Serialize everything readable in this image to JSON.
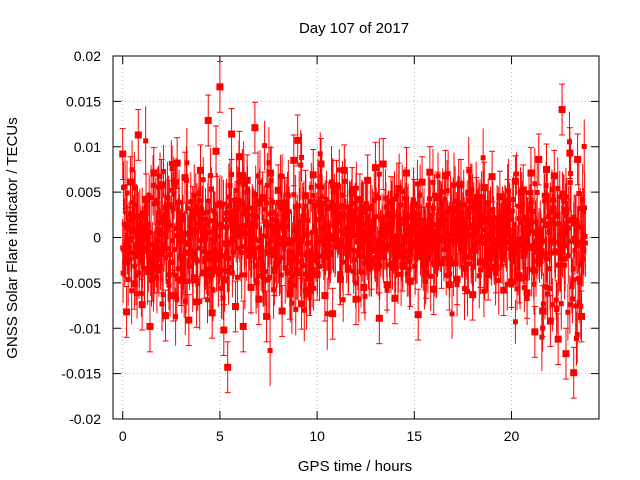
{
  "chart_data": {
    "type": "scatter",
    "title": "Day 107 of 2017",
    "xlabel": "GPS time / hours",
    "ylabel": "GNSS Solar Flare indicator / TECUs",
    "xlim": [
      -0.5,
      24.5
    ],
    "ylim": [
      -0.02,
      0.02
    ],
    "xticks": [
      0,
      5,
      10,
      15,
      20
    ],
    "yticks": [
      -0.02,
      -0.015,
      -0.01,
      -0.005,
      0,
      0.005,
      0.01,
      0.015,
      0.02
    ],
    "x_tick_labels": [
      "0",
      "5",
      "10",
      "15",
      "20"
    ],
    "y_tick_labels": [
      "-0.02",
      "-0.015",
      "-0.01",
      "-0.005",
      "0",
      "0.005",
      "0.01",
      "0.015",
      "0.02"
    ],
    "grid": true,
    "legend": "none",
    "error_bars": true,
    "marker": "square",
    "series_color": "#ff0000",
    "series": [
      {
        "x": [
          0.0,
          0.2,
          0.4,
          0.6,
          0.8,
          1.0,
          1.2,
          1.4,
          1.6,
          1.8,
          2.0,
          2.2,
          2.4,
          2.6,
          2.8,
          3.0,
          3.2,
          3.4,
          3.6,
          3.8,
          4.0,
          4.2,
          4.4,
          4.6,
          4.8,
          5.0,
          5.2,
          5.4,
          5.6,
          5.8,
          6.0,
          6.2,
          6.4,
          6.6,
          6.8,
          7.0,
          7.2,
          7.4,
          7.6,
          7.8,
          8.0,
          8.2,
          8.4,
          8.6,
          8.8,
          9.0,
          9.2,
          9.4,
          9.6,
          9.8,
          10.0,
          10.2,
          10.4,
          10.6,
          10.8,
          11.0,
          11.2,
          11.4,
          11.6,
          11.8,
          12.0,
          12.2,
          12.4,
          12.6,
          12.8,
          13.0,
          13.2,
          13.4,
          13.6,
          13.8,
          14.0,
          14.2,
          14.4,
          14.6,
          14.8,
          15.0,
          15.2,
          15.4,
          15.6,
          15.8,
          16.0,
          16.2,
          16.4,
          16.6,
          16.8,
          17.0,
          17.2,
          17.4,
          17.6,
          17.8,
          18.0,
          18.2,
          18.4,
          18.6,
          18.8,
          19.0,
          19.2,
          19.4,
          19.6,
          19.8,
          20.0,
          20.2,
          20.4,
          20.6,
          20.8,
          21.0,
          21.2,
          21.4,
          21.6,
          21.8,
          22.0,
          22.2,
          22.4,
          22.6,
          22.8,
          23.0,
          23.2,
          23.4,
          23.6
        ],
        "y": [
          0.0092,
          -0.0082,
          0.0061,
          -0.0051,
          0.0113,
          -0.0074,
          0.0042,
          -0.0098,
          0.0071,
          -0.0033,
          0.0058,
          -0.0086,
          0.0035,
          -0.0064,
          0.0082,
          -0.0047,
          0.0066,
          -0.0091,
          0.0028,
          -0.0071,
          0.0074,
          -0.0039,
          0.0129,
          -0.0083,
          0.0095,
          0.0166,
          -0.0102,
          -0.0143,
          0.0114,
          -0.0076,
          0.0089,
          -0.0098,
          0.0063,
          -0.0055,
          0.0121,
          -0.0068,
          0.0044,
          -0.0087,
          0.0071,
          -0.0036,
          0.0052,
          -0.0081,
          0.0038,
          -0.0062,
          0.0085,
          0.0107,
          -0.0073,
          0.0046,
          -0.0058,
          0.0069,
          -0.0041,
          0.0081,
          -0.0064,
          0.0033,
          -0.0084,
          0.0057,
          -0.0046,
          0.0074,
          -0.0035,
          0.0049,
          -0.0068,
          0.0042,
          -0.0055,
          0.0063,
          -0.0029,
          0.0077,
          -0.0089,
          0.0081,
          -0.0052,
          0.0039,
          -0.0067,
          0.0054,
          -0.0031,
          0.0071,
          -0.0048,
          0.0036,
          -0.0085,
          0.0061,
          -0.0039,
          0.0072,
          -0.0057,
          0.0044,
          -0.0028,
          0.0068,
          -0.0052,
          0.0031,
          -0.0046,
          0.0058,
          -0.0034,
          0.0049,
          -0.0063,
          0.0038,
          -0.0027,
          0.0055,
          -0.0041,
          0.0067,
          -0.0033,
          0.0045,
          -0.0058,
          0.0036,
          -0.0049,
          0.0062,
          -0.0044,
          0.0052,
          -0.0061,
          0.0071,
          -0.0104,
          0.0086,
          -0.0081,
          0.0075,
          -0.0092,
          0.0068,
          -0.0112,
          0.0141,
          -0.0128,
          0.0093,
          -0.0149,
          0.0086,
          -0.0087
        ]
      }
    ]
  }
}
